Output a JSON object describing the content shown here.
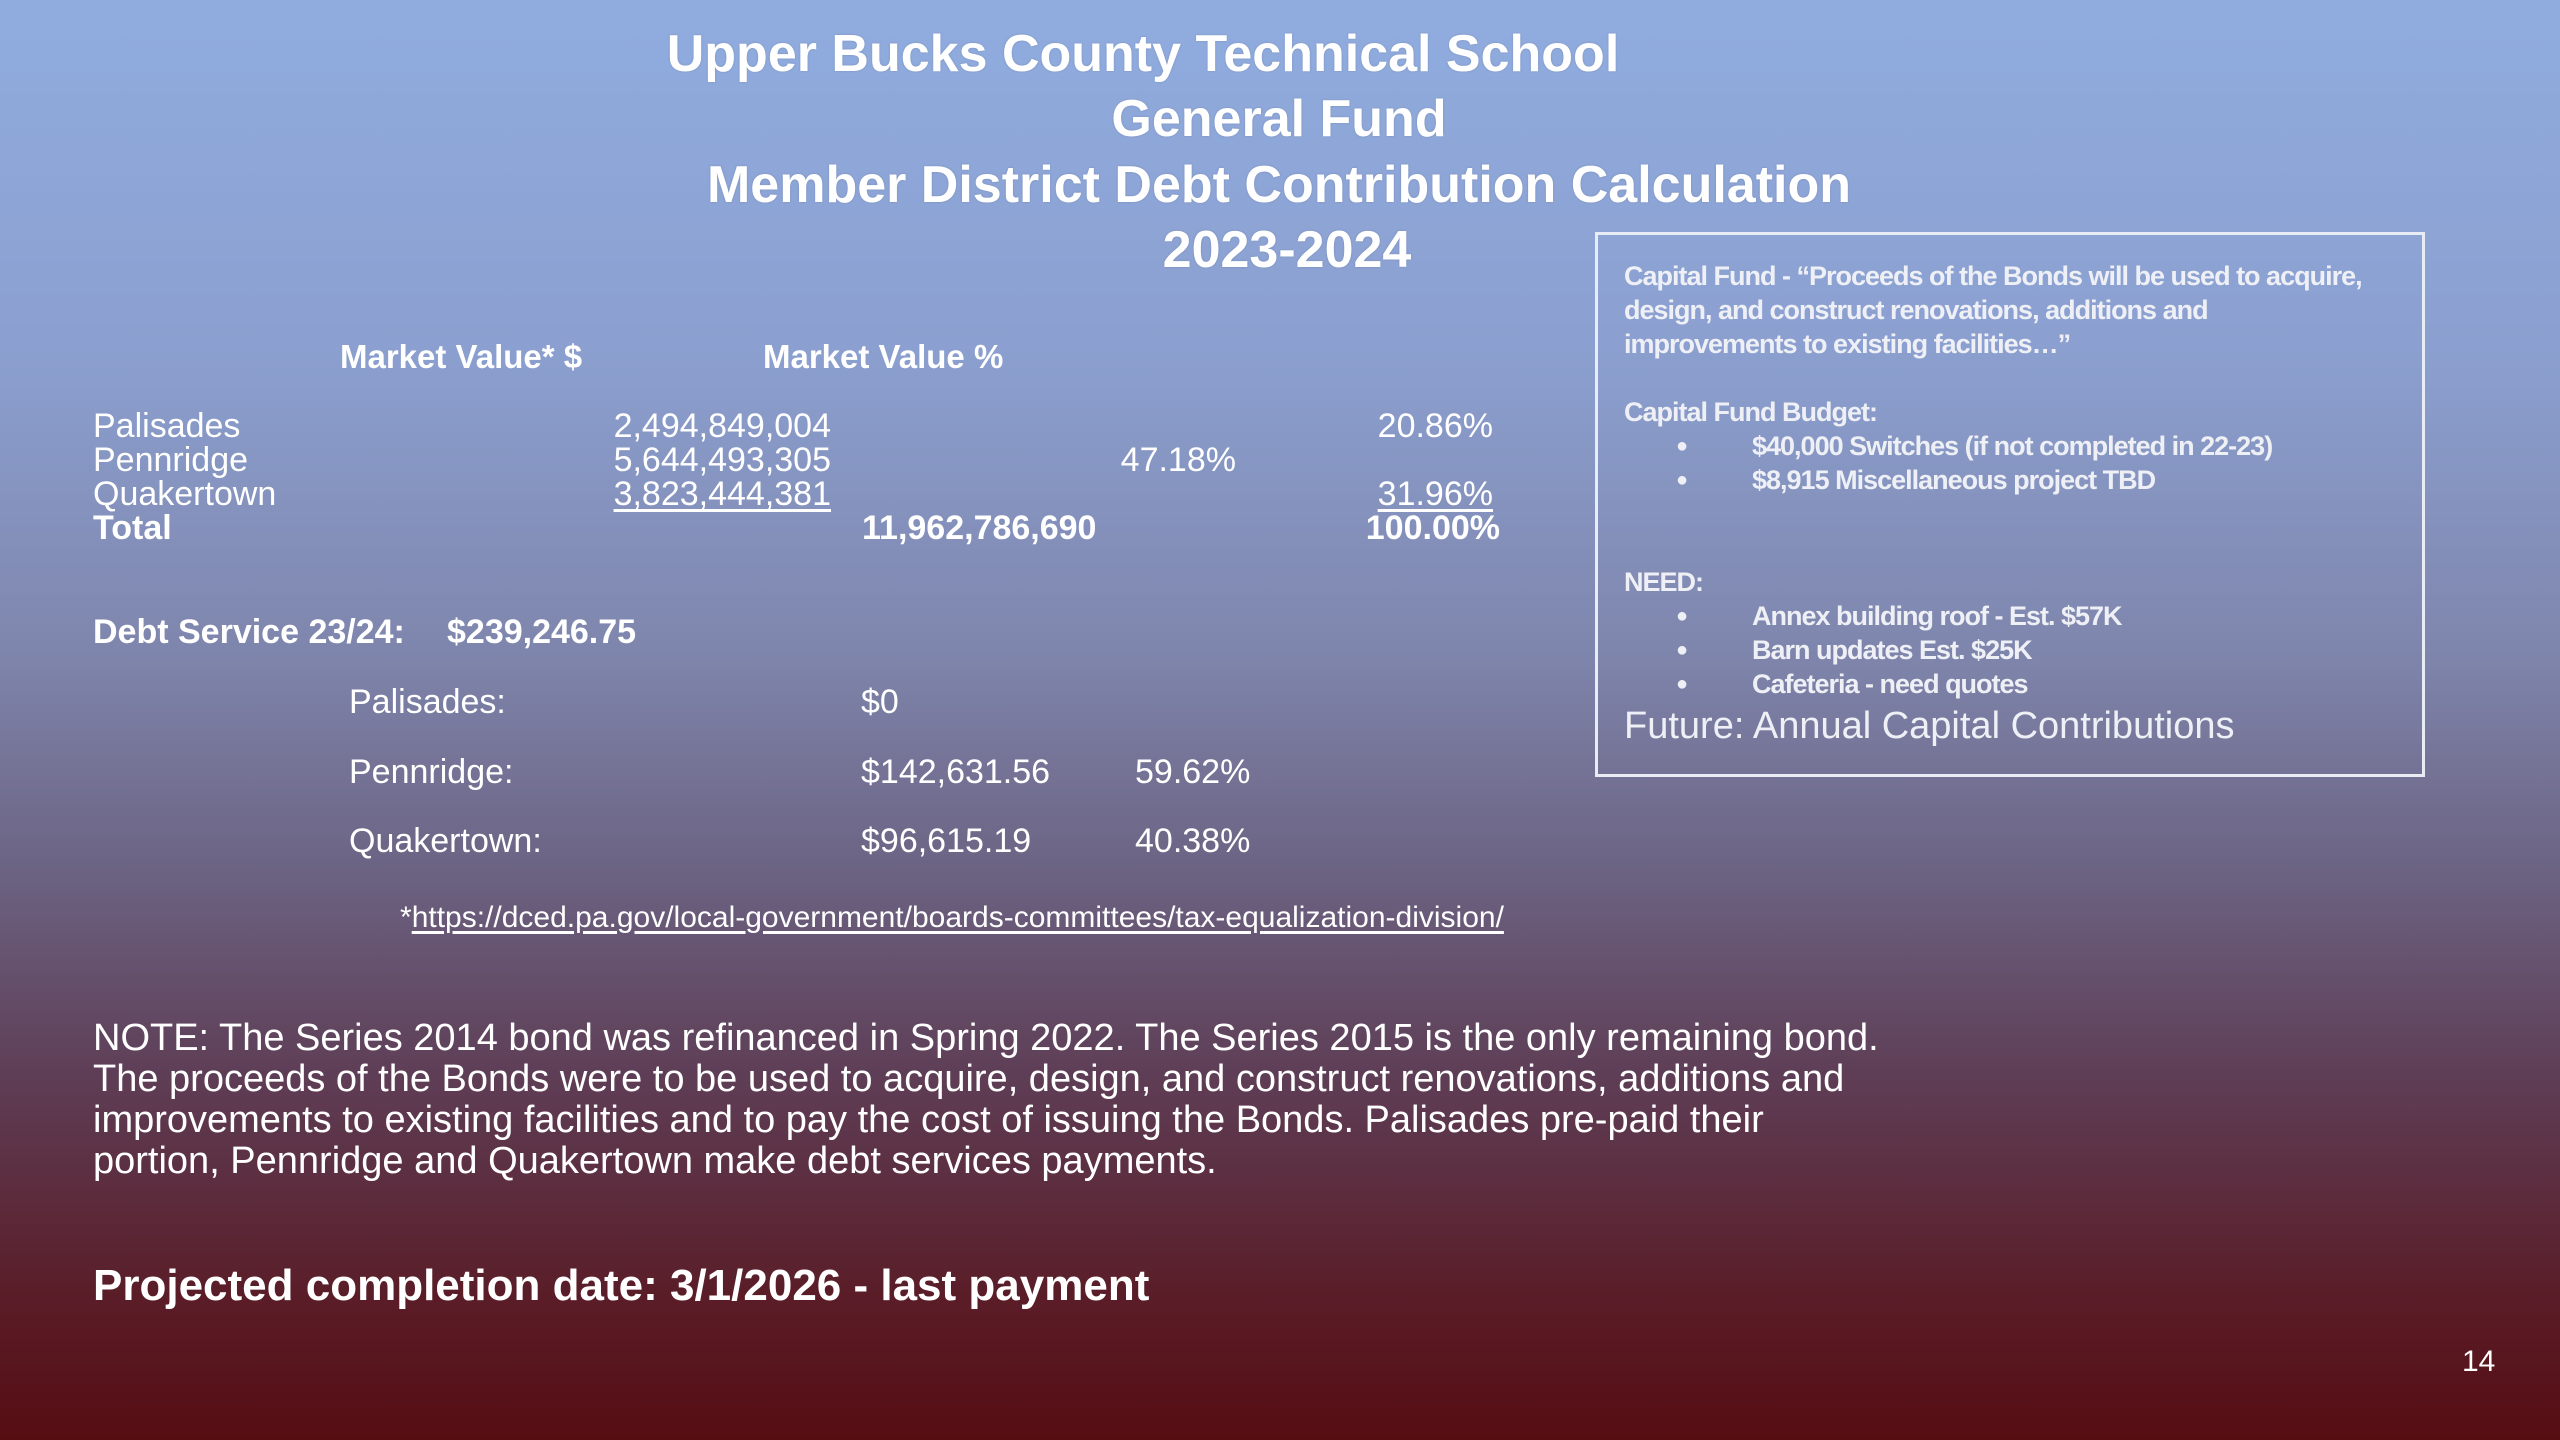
{
  "title": {
    "line1": "Upper Bucks County Technical School",
    "line2": "General Fund",
    "line3": "Member District Debt Contribution Calculation",
    "line4": "2023-2024"
  },
  "market_table": {
    "headers": [
      "Market Value* $",
      "Market Value %"
    ],
    "rows": [
      {
        "district": "Palisades",
        "value": "2,494,849,004",
        "percent": "20.86%"
      },
      {
        "district": "Pennridge",
        "value": "5,644,493,305",
        "percent": "47.18%"
      },
      {
        "district": "Quakertown",
        "value": "3,823,444,381",
        "percent": "31.96%"
      }
    ],
    "total": {
      "label": "Total",
      "value": "11,962,786,690",
      "percent": "100.00%"
    }
  },
  "debt_service": {
    "label": "Debt Service 23/24:",
    "amount": "$239,246.75",
    "rows": [
      {
        "district": "Palisades:",
        "amount": "$0",
        "percent": ""
      },
      {
        "district": "Pennridge:",
        "amount": "$142,631.56",
        "percent": "59.62%"
      },
      {
        "district": "Quakertown:",
        "amount": "$96,615.19",
        "percent": "40.38%"
      }
    ]
  },
  "source": {
    "prefix": "*",
    "link": "https://dced.pa.gov/local-government/boards-committees/tax-equalization-division/"
  },
  "note": "NOTE: The Series 2014 bond was refinanced in Spring 2022. The Series 2015 is the only remaining bond. The proceeds of the Bonds were to be used to acquire, design, and construct renovations, additions and improvements to existing facilities and to pay the cost of issuing the Bonds. Palisades pre-paid their portion, Pennridge and Quakertown make debt services payments.",
  "projected": "Projected completion date: 3/1/2026 - last payment",
  "page_number": "14",
  "capital_box": {
    "quote_lines": [
      "Capital Fund - “Proceeds of the Bonds will be used to acquire,",
      "design, and construct renovations, additions and",
      "improvements to existing facilities…”"
    ],
    "budget_heading": "Capital Fund Budget:",
    "budget_items": [
      "$40,000 Switches (if not completed in 22-23)",
      "$8,915 Miscellaneous project TBD"
    ],
    "need_heading": "NEED:",
    "need_items": [
      "Annex building roof - Est. $57K",
      "Barn updates Est. $25K",
      "Cafeteria - need quotes"
    ],
    "future": "Future: Annual Capital Contributions"
  }
}
